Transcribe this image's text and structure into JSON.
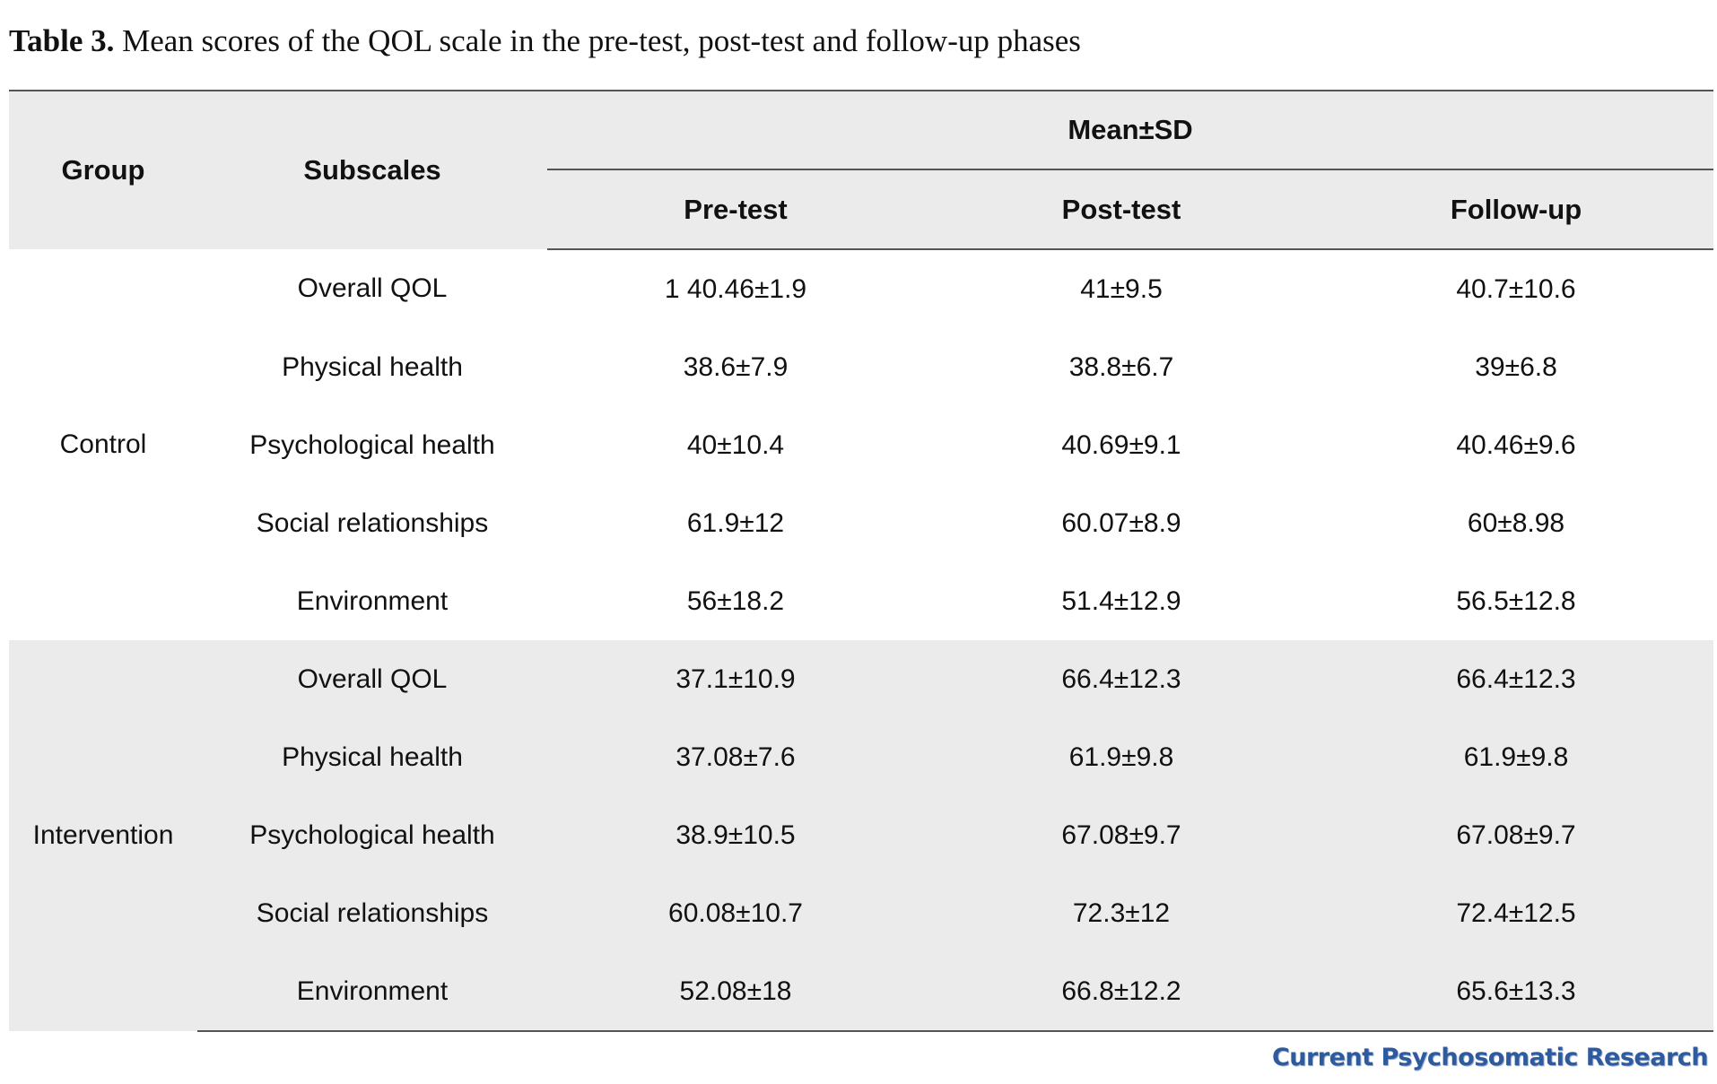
{
  "caption": {
    "label": "Table 3.",
    "text": " Mean scores of the QOL scale in the pre-test, post-test and follow-up phases"
  },
  "table": {
    "headers": {
      "group": "Group",
      "subscales": "Subscales",
      "mean_sd": "Mean±SD",
      "pre_test": "Pre-test",
      "post_test": "Post-test",
      "follow_up": "Follow-up"
    },
    "groups": [
      {
        "name": "Control",
        "rows": [
          {
            "subscale": "Overall QOL",
            "pre": "1 40.46±1.9",
            "post": "41±9.5",
            "follow": "40.7±10.6"
          },
          {
            "subscale": "Physical health",
            "pre": "38.6±7.9",
            "post": "38.8±6.7",
            "follow": "39±6.8"
          },
          {
            "subscale": "Psychological health",
            "pre": "40±10.4",
            "post": "40.69±9.1",
            "follow": "40.46±9.6"
          },
          {
            "subscale": "Social relationships",
            "pre": "61.9±12",
            "post": "60.07±8.9",
            "follow": "60±8.98"
          },
          {
            "subscale": "Environment",
            "pre": "56±18.2",
            "post": "51.4±12.9",
            "follow": "56.5±12.8"
          }
        ]
      },
      {
        "name": "Intervention",
        "rows": [
          {
            "subscale": "Overall QOL",
            "pre": "37.1±10.9",
            "post": "66.4±12.3",
            "follow": "66.4±12.3"
          },
          {
            "subscale": "Physical health",
            "pre": "37.08±7.6",
            "post": "61.9±9.8",
            "follow": "61.9±9.8"
          },
          {
            "subscale": "Psychological health",
            "pre": "38.9±10.5",
            "post": "67.08±9.7",
            "follow": "67.08±9.7"
          },
          {
            "subscale": "Social relationships",
            "pre": "60.08±10.7",
            "post": "72.3±12",
            "follow": "72.4±12.5"
          },
          {
            "subscale": "Environment",
            "pre": "52.08±18",
            "post": "66.8±12.2",
            "follow": "65.6±13.3"
          }
        ]
      }
    ]
  },
  "footer": {
    "logo_text": "Current Psychosomatic Research",
    "logo_color": "#2e5a9e"
  },
  "colors": {
    "shaded_row": "#ebebeb",
    "rule": "#555555"
  }
}
